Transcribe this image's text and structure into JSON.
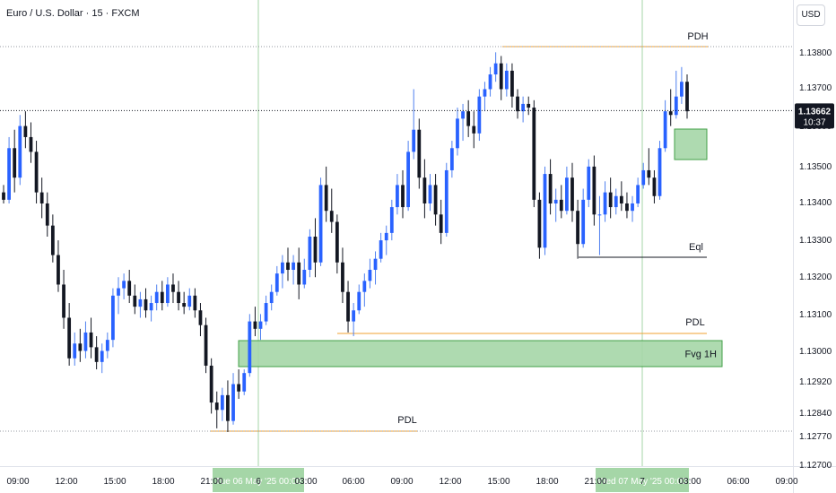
{
  "header": {
    "symbol_title": "Euro / U.S. Dollar · 15 · FXCM",
    "currency_label": "USD"
  },
  "colors": {
    "bull": "#2962ff",
    "bull_wick": "#4f80f0",
    "bear": "#131722",
    "level_line": "#f0a030",
    "fvg_fill": "#a5d6a7",
    "fvg_border": "#43a047",
    "session_line": "#a5d6a7",
    "time_highlight": "#a5d6a7",
    "last_price_bg": "#131722",
    "eql_line": "#131722"
  },
  "chart_data": {
    "type": "candlestick",
    "title": "Euro / U.S. Dollar · 15 · FXCM",
    "y_axis": {
      "ticks": [
        "1.13800",
        "1.13700",
        "1.13600",
        "1.13500",
        "1.13400",
        "1.13300",
        "1.13200",
        "1.13100",
        "1.13000",
        "1.12920",
        "1.12840",
        "1.12770",
        "1.12700"
      ],
      "min": 1.127,
      "max": 1.1385
    },
    "x_axis": {
      "ticks": [
        "09:00",
        "12:00",
        "15:00",
        "18:00",
        "21:00",
        "6",
        "03:00",
        "06:00",
        "09:00",
        "12:00",
        "15:00",
        "18:00",
        "21:00",
        "7",
        "03:00",
        "06:00",
        "09:00"
      ],
      "highlighted_labels": [
        "Tue 06 May '25   00:00",
        "Wed 07 May '25   00:00"
      ]
    },
    "last_price": {
      "value": "1.13662",
      "countdown": "10:37"
    },
    "levels": [
      {
        "label": "PDH",
        "price": 1.1381
      },
      {
        "label": "PDL",
        "price": 1.1305
      },
      {
        "label": "PDL",
        "price": 1.1279
      },
      {
        "label": "Eql",
        "price": 1.1325
      }
    ],
    "zones": [
      {
        "label": "Fvg 1H",
        "top": 1.1303,
        "bottom": 1.1296
      },
      {
        "label": "",
        "top": 1.1359,
        "bottom": 1.1351
      }
    ],
    "candles": [
      [
        1.1344,
        1.1346,
        1.1341,
        1.1342
      ],
      [
        1.1342,
        1.1359,
        1.1341,
        1.1356
      ],
      [
        1.1356,
        1.1361,
        1.1344,
        1.1348
      ],
      [
        1.1348,
        1.1365,
        1.1346,
        1.1362
      ],
      [
        1.1362,
        1.1366,
        1.1356,
        1.1359
      ],
      [
        1.1359,
        1.1363,
        1.1352,
        1.1355
      ],
      [
        1.1355,
        1.1358,
        1.1341,
        1.1344
      ],
      [
        1.1344,
        1.1348,
        1.1337,
        1.1341
      ],
      [
        1.1341,
        1.1344,
        1.1332,
        1.1335
      ],
      [
        1.1335,
        1.1338,
        1.1325,
        1.1327
      ],
      [
        1.1327,
        1.1331,
        1.1317,
        1.1319
      ],
      [
        1.1319,
        1.1323,
        1.1307,
        1.131
      ],
      [
        1.131,
        1.1314,
        1.1297,
        1.1299
      ],
      [
        1.1299,
        1.1306,
        1.1297,
        1.1303
      ],
      [
        1.1303,
        1.1307,
        1.1298,
        1.1301
      ],
      [
        1.1301,
        1.1309,
        1.1299,
        1.1306
      ],
      [
        1.1306,
        1.131,
        1.1299,
        1.1302
      ],
      [
        1.1302,
        1.1305,
        1.1296,
        1.1298
      ],
      [
        1.1298,
        1.1303,
        1.1295,
        1.1301
      ],
      [
        1.1301,
        1.1306,
        1.1299,
        1.1304
      ],
      [
        1.1304,
        1.1318,
        1.1302,
        1.1316
      ],
      [
        1.1316,
        1.1321,
        1.1311,
        1.1318
      ],
      [
        1.1318,
        1.1322,
        1.1315,
        1.132
      ],
      [
        1.132,
        1.1323,
        1.1314,
        1.1316
      ],
      [
        1.1316,
        1.1319,
        1.1311,
        1.1313
      ],
      [
        1.1313,
        1.1317,
        1.131,
        1.1315
      ],
      [
        1.1315,
        1.1318,
        1.131,
        1.1312
      ],
      [
        1.1312,
        1.1316,
        1.1309,
        1.1314
      ],
      [
        1.1314,
        1.1319,
        1.1312,
        1.1317
      ],
      [
        1.1317,
        1.132,
        1.1312,
        1.1314
      ],
      [
        1.1314,
        1.1321,
        1.1313,
        1.1319
      ],
      [
        1.1319,
        1.1322,
        1.1314,
        1.1317
      ],
      [
        1.1317,
        1.132,
        1.1312,
        1.1314
      ],
      [
        1.1314,
        1.1317,
        1.1311,
        1.1313
      ],
      [
        1.1313,
        1.1318,
        1.1312,
        1.1316
      ],
      [
        1.1316,
        1.1318,
        1.131,
        1.1312
      ],
      [
        1.1312,
        1.1314,
        1.1305,
        1.1308
      ],
      [
        1.1308,
        1.131,
        1.1295,
        1.1297
      ],
      [
        1.1297,
        1.1299,
        1.1284,
        1.1287
      ],
      [
        1.1287,
        1.129,
        1.128,
        1.1285
      ],
      [
        1.1285,
        1.1291,
        1.1282,
        1.1289
      ],
      [
        1.1289,
        1.1293,
        1.1279,
        1.1282
      ],
      [
        1.1282,
        1.1295,
        1.1281,
        1.1292
      ],
      [
        1.1292,
        1.1296,
        1.1288,
        1.129
      ],
      [
        1.129,
        1.1296,
        1.1289,
        1.1295
      ],
      [
        1.1295,
        1.1311,
        1.1294,
        1.1309
      ],
      [
        1.1309,
        1.1313,
        1.1305,
        1.1307
      ],
      [
        1.1307,
        1.1311,
        1.1304,
        1.1309
      ],
      [
        1.1309,
        1.1316,
        1.1308,
        1.1314
      ],
      [
        1.1314,
        1.1319,
        1.1312,
        1.1317
      ],
      [
        1.1317,
        1.1324,
        1.1316,
        1.1322
      ],
      [
        1.1322,
        1.1327,
        1.1318,
        1.1325
      ],
      [
        1.1325,
        1.1329,
        1.132,
        1.1323
      ],
      [
        1.1323,
        1.1327,
        1.1319,
        1.1325
      ],
      [
        1.1325,
        1.1329,
        1.1315,
        1.1319
      ],
      [
        1.1319,
        1.1326,
        1.1318,
        1.1323
      ],
      [
        1.1323,
        1.1334,
        1.1321,
        1.1332
      ],
      [
        1.1332,
        1.1337,
        1.1321,
        1.1325
      ],
      [
        1.1325,
        1.1348,
        1.1324,
        1.1346
      ],
      [
        1.1346,
        1.1351,
        1.1336,
        1.1339
      ],
      [
        1.1339,
        1.1345,
        1.1333,
        1.1336
      ],
      [
        1.1336,
        1.1338,
        1.1322,
        1.1325
      ],
      [
        1.1325,
        1.1329,
        1.1314,
        1.1317
      ],
      [
        1.1317,
        1.132,
        1.1306,
        1.1309
      ],
      [
        1.1309,
        1.1314,
        1.1305,
        1.1312
      ],
      [
        1.1312,
        1.1319,
        1.1311,
        1.1317
      ],
      [
        1.1317,
        1.1322,
        1.1313,
        1.132
      ],
      [
        1.132,
        1.1326,
        1.1318,
        1.1323
      ],
      [
        1.1323,
        1.1328,
        1.1319,
        1.1326
      ],
      [
        1.1326,
        1.1333,
        1.1325,
        1.1331
      ],
      [
        1.1331,
        1.1335,
        1.1327,
        1.1333
      ],
      [
        1.1333,
        1.1342,
        1.1331,
        1.134
      ],
      [
        1.134,
        1.1349,
        1.1338,
        1.1346
      ],
      [
        1.1346,
        1.135,
        1.1337,
        1.134
      ],
      [
        1.134,
        1.1358,
        1.1339,
        1.1355
      ],
      [
        1.1355,
        1.1372,
        1.1353,
        1.1361
      ],
      [
        1.1361,
        1.1364,
        1.1345,
        1.1348
      ],
      [
        1.1348,
        1.1353,
        1.1337,
        1.1341
      ],
      [
        1.1341,
        1.1349,
        1.1339,
        1.1346
      ],
      [
        1.1346,
        1.1349,
        1.1335,
        1.1338
      ],
      [
        1.1338,
        1.1342,
        1.133,
        1.1333
      ],
      [
        1.1333,
        1.1352,
        1.1332,
        1.135
      ],
      [
        1.135,
        1.1358,
        1.1348,
        1.1356
      ],
      [
        1.1356,
        1.1367,
        1.1354,
        1.1364
      ],
      [
        1.1364,
        1.1368,
        1.1358,
        1.1366
      ],
      [
        1.1366,
        1.1369,
        1.1359,
        1.1362
      ],
      [
        1.1362,
        1.1366,
        1.1356,
        1.136
      ],
      [
        1.136,
        1.1372,
        1.1358,
        1.137
      ],
      [
        1.137,
        1.1374,
        1.1366,
        1.1372
      ],
      [
        1.1372,
        1.1378,
        1.137,
        1.1376
      ],
      [
        1.1376,
        1.1382,
        1.1374,
        1.1379
      ],
      [
        1.1379,
        1.1381,
        1.1369,
        1.1372
      ],
      [
        1.1372,
        1.1379,
        1.137,
        1.1377
      ],
      [
        1.1377,
        1.1379,
        1.1367,
        1.137
      ],
      [
        1.137,
        1.1372,
        1.1364,
        1.1366
      ],
      [
        1.1366,
        1.137,
        1.1363,
        1.1368
      ],
      [
        1.1368,
        1.137,
        1.1365,
        1.1367
      ],
      [
        1.1367,
        1.1369,
        1.134,
        1.1342
      ],
      [
        1.1342,
        1.1344,
        1.1326,
        1.1329
      ],
      [
        1.1329,
        1.1351,
        1.1327,
        1.1349
      ],
      [
        1.1349,
        1.1353,
        1.1338,
        1.1341
      ],
      [
        1.1341,
        1.1345,
        1.1336,
        1.1342
      ],
      [
        1.1342,
        1.1346,
        1.1337,
        1.1339
      ],
      [
        1.1339,
        1.1351,
        1.1338,
        1.1348
      ],
      [
        1.1348,
        1.1352,
        1.1336,
        1.1339
      ],
      [
        1.1339,
        1.1342,
        1.1326,
        1.133
      ],
      [
        1.133,
        1.1345,
        1.1329,
        1.1342
      ],
      [
        1.1342,
        1.1353,
        1.134,
        1.1351
      ],
      [
        1.1351,
        1.1354,
        1.1335,
        1.1338
      ],
      [
        1.1338,
        1.1343,
        1.1327,
        1.1338
      ],
      [
        1.1338,
        1.1347,
        1.1336,
        1.1344
      ],
      [
        1.1344,
        1.1348,
        1.1337,
        1.134
      ],
      [
        1.134,
        1.1345,
        1.1338,
        1.1343
      ],
      [
        1.1343,
        1.1347,
        1.1339,
        1.1341
      ],
      [
        1.1341,
        1.1344,
        1.1337,
        1.1339
      ],
      [
        1.1339,
        1.1343,
        1.1336,
        1.1341
      ],
      [
        1.1341,
        1.1348,
        1.134,
        1.1346
      ],
      [
        1.1346,
        1.1352,
        1.1345,
        1.135
      ],
      [
        1.135,
        1.1356,
        1.1346,
        1.1348
      ],
      [
        1.1348,
        1.135,
        1.1341,
        1.1343
      ],
      [
        1.1343,
        1.1358,
        1.1342,
        1.1356
      ],
      [
        1.1356,
        1.1369,
        1.1355,
        1.1366
      ],
      [
        1.1366,
        1.1372,
        1.1362,
        1.1365
      ],
      [
        1.1365,
        1.1377,
        1.1364,
        1.137
      ],
      [
        1.137,
        1.1378,
        1.1368,
        1.1374
      ],
      [
        1.1374,
        1.1376,
        1.1364,
        1.1366
      ]
    ]
  }
}
